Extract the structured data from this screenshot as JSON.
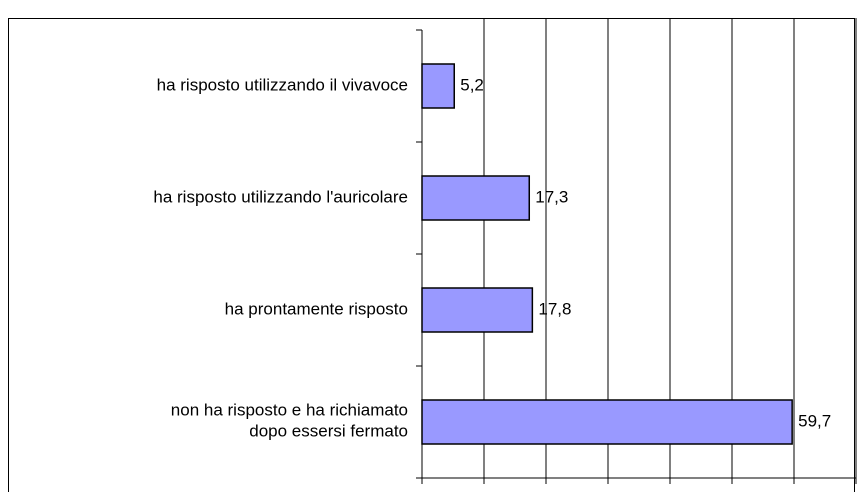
{
  "chart_data": {
    "type": "bar",
    "orientation": "horizontal",
    "categories": [
      "ha risposto utilizzando il vivavoce",
      "ha risposto utilizzando l'auricolare",
      "ha prontamente risposto",
      "non ha risposto e ha richiamato\ndopo essersi fermato"
    ],
    "values": [
      5.2,
      17.3,
      17.8,
      59.7
    ],
    "value_labels": [
      "5,2",
      "17,3",
      "17,8",
      "59,7"
    ],
    "color": "#9999ff",
    "xlim": [
      0,
      70
    ],
    "xticks": [
      0,
      10,
      20,
      30,
      40,
      50,
      60,
      70
    ],
    "grid": true
  }
}
